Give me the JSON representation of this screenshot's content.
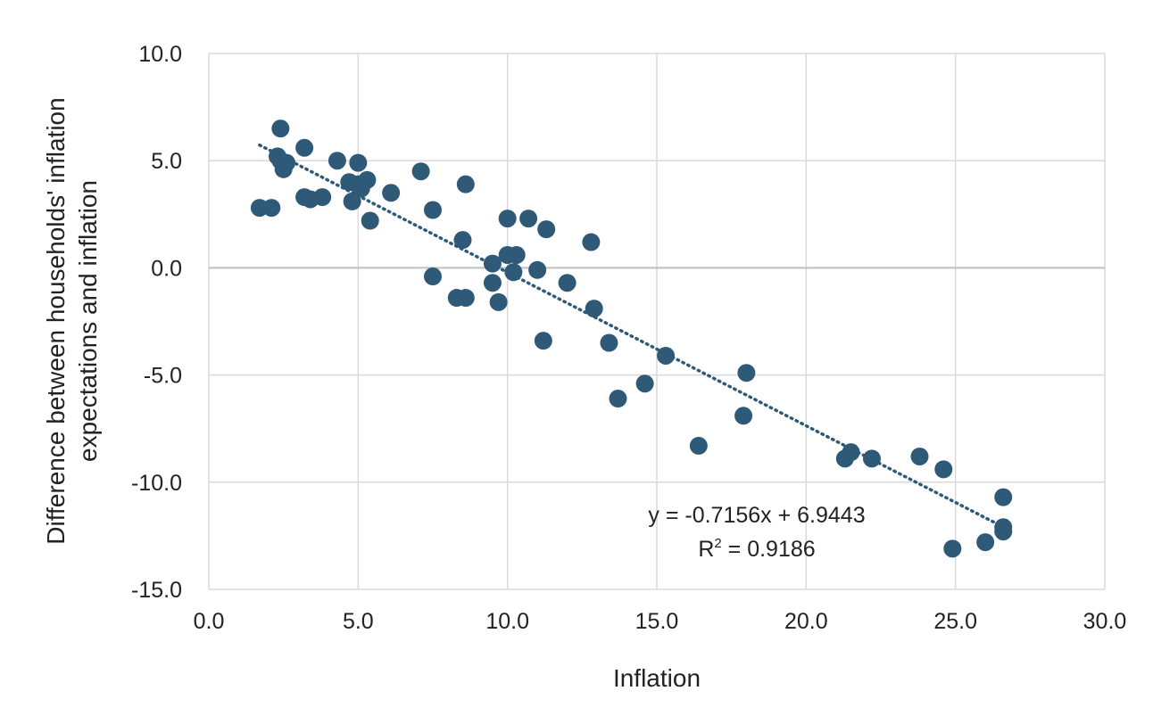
{
  "chart_data": {
    "type": "scatter",
    "title": "",
    "xlabel": "Inflation",
    "ylabel_lines": [
      "Difference between households' inflation",
      "expectations and inflation"
    ],
    "xlim": [
      0,
      30
    ],
    "ylim": [
      -15,
      10
    ],
    "x_ticks": [
      0,
      5,
      10,
      15,
      20,
      25,
      30
    ],
    "x_tick_labels": [
      "0.0",
      "5.0",
      "10.0",
      "15.0",
      "20.0",
      "25.0",
      "30.0"
    ],
    "y_ticks": [
      10,
      5,
      0,
      -5,
      -10,
      -15
    ],
    "y_tick_labels": [
      "10.0",
      "5.0",
      "0.0",
      "-5.0",
      "-10.0",
      "-15.0"
    ],
    "grid": true,
    "marker_color": "#2e5a78",
    "trendline_color": "#2e5a78",
    "points": [
      {
        "x": 1.7,
        "y": 2.8
      },
      {
        "x": 2.1,
        "y": 2.8
      },
      {
        "x": 2.3,
        "y": 5.2
      },
      {
        "x": 2.4,
        "y": 6.5
      },
      {
        "x": 2.4,
        "y": 5.0
      },
      {
        "x": 2.5,
        "y": 4.6
      },
      {
        "x": 2.6,
        "y": 4.9
      },
      {
        "x": 3.2,
        "y": 5.6
      },
      {
        "x": 3.2,
        "y": 3.3
      },
      {
        "x": 3.4,
        "y": 3.2
      },
      {
        "x": 3.8,
        "y": 3.3
      },
      {
        "x": 4.3,
        "y": 5.0
      },
      {
        "x": 4.7,
        "y": 4.0
      },
      {
        "x": 4.8,
        "y": 3.1
      },
      {
        "x": 5.0,
        "y": 4.9
      },
      {
        "x": 5.0,
        "y": 3.9
      },
      {
        "x": 5.1,
        "y": 3.7
      },
      {
        "x": 5.3,
        "y": 4.1
      },
      {
        "x": 5.4,
        "y": 2.2
      },
      {
        "x": 6.1,
        "y": 3.5
      },
      {
        "x": 7.1,
        "y": 4.5
      },
      {
        "x": 7.5,
        "y": 2.7
      },
      {
        "x": 7.5,
        "y": -0.4
      },
      {
        "x": 8.3,
        "y": -1.4
      },
      {
        "x": 8.5,
        "y": 1.3
      },
      {
        "x": 8.6,
        "y": -1.4
      },
      {
        "x": 8.6,
        "y": 3.9
      },
      {
        "x": 9.5,
        "y": 0.2
      },
      {
        "x": 9.5,
        "y": -0.7
      },
      {
        "x": 9.7,
        "y": -1.6
      },
      {
        "x": 10.0,
        "y": 2.3
      },
      {
        "x": 10.0,
        "y": 0.6
      },
      {
        "x": 10.2,
        "y": -0.2
      },
      {
        "x": 10.3,
        "y": 0.6
      },
      {
        "x": 10.7,
        "y": 2.3
      },
      {
        "x": 11.0,
        "y": -0.1
      },
      {
        "x": 11.2,
        "y": -3.4
      },
      {
        "x": 11.3,
        "y": 1.8
      },
      {
        "x": 12.0,
        "y": -0.7
      },
      {
        "x": 12.8,
        "y": 1.2
      },
      {
        "x": 12.9,
        "y": -1.9
      },
      {
        "x": 13.4,
        "y": -3.5
      },
      {
        "x": 13.7,
        "y": -6.1
      },
      {
        "x": 14.6,
        "y": -5.4
      },
      {
        "x": 15.3,
        "y": -4.1
      },
      {
        "x": 16.4,
        "y": -8.3
      },
      {
        "x": 17.9,
        "y": -6.9
      },
      {
        "x": 18.0,
        "y": -4.9
      },
      {
        "x": 21.3,
        "y": -8.9
      },
      {
        "x": 21.5,
        "y": -8.6
      },
      {
        "x": 22.2,
        "y": -8.9
      },
      {
        "x": 23.8,
        "y": -8.8
      },
      {
        "x": 24.6,
        "y": -9.4
      },
      {
        "x": 24.9,
        "y": -13.1
      },
      {
        "x": 26.0,
        "y": -12.8
      },
      {
        "x": 26.6,
        "y": -10.7
      },
      {
        "x": 26.6,
        "y": -12.1
      },
      {
        "x": 26.6,
        "y": -12.3
      }
    ],
    "trendline": {
      "slope": -0.7156,
      "intercept": 6.9443,
      "x_range": [
        1.7,
        26.6
      ],
      "equation_label": "y = -0.7156x + 6.9443",
      "r2_label_prefix": "R",
      "r2_label_superscript": "2",
      "r2_label_value": " = 0.9186"
    }
  }
}
